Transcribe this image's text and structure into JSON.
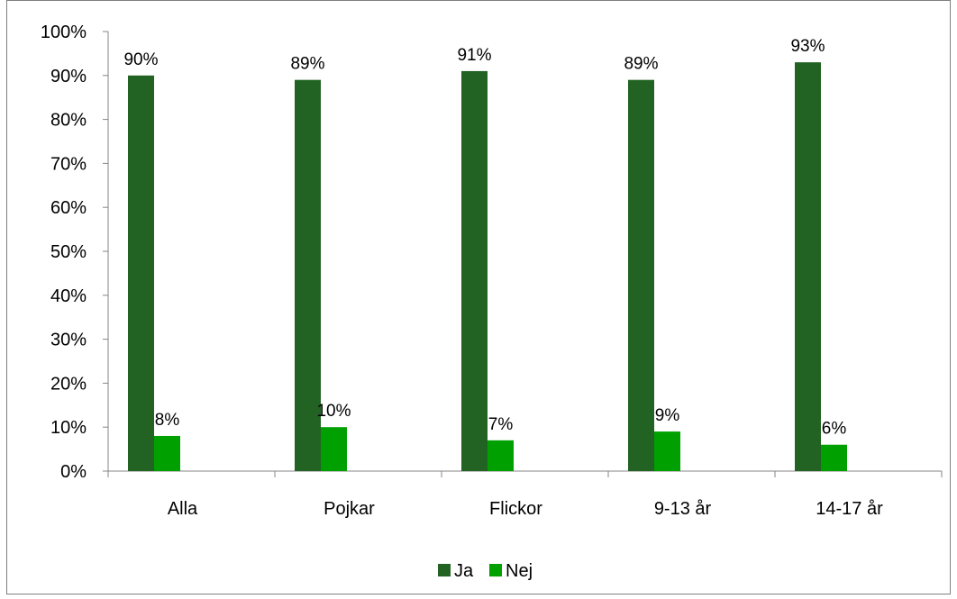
{
  "chart_data": {
    "type": "bar",
    "categories": [
      "Alla",
      "Pojkar",
      "Flickor",
      "9-13 år",
      "14-17 år"
    ],
    "series": [
      {
        "name": "Ja",
        "values": [
          90,
          89,
          91,
          89,
          93
        ],
        "labels": [
          "90%",
          "89%",
          "91%",
          "89%",
          "93%"
        ],
        "color": "#226323"
      },
      {
        "name": "Nej",
        "values": [
          8,
          10,
          7,
          9,
          6
        ],
        "labels": [
          "8%",
          "10%",
          "7%",
          "9%",
          "6%"
        ],
        "color": "#00a000"
      }
    ],
    "ylim": [
      0,
      100
    ],
    "yticks": [
      "0%",
      "10%",
      "20%",
      "30%",
      "40%",
      "50%",
      "60%",
      "70%",
      "80%",
      "90%",
      "100%"
    ],
    "grid": false,
    "legend_position": "bottom-center",
    "axis_color": "#868686"
  }
}
